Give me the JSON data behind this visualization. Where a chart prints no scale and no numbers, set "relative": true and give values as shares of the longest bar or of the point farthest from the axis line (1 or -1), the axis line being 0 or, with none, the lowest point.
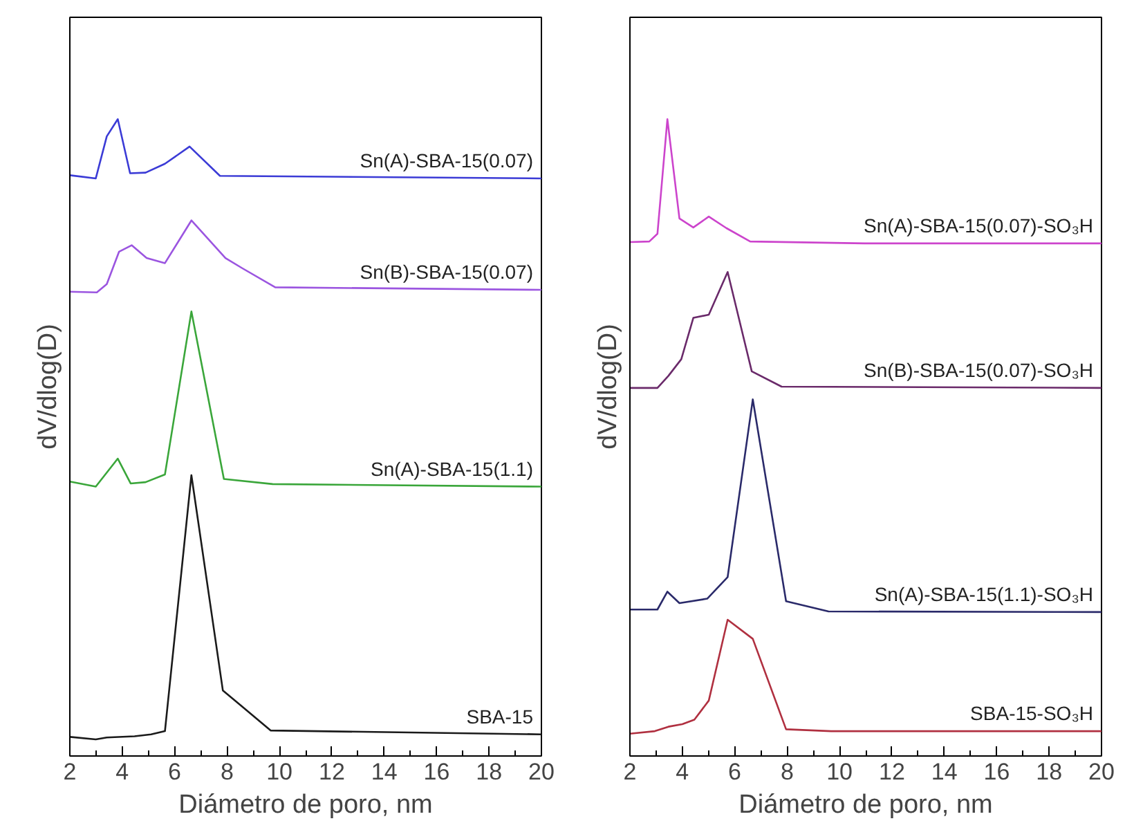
{
  "chart_data": [
    {
      "type": "line",
      "relative": true,
      "xlabel": "Diámetro de poro, nm",
      "ylabel": "dV/dlog(D)",
      "xlim": [
        2,
        20
      ],
      "xticks": [
        2,
        4,
        6,
        8,
        10,
        12,
        14,
        16,
        18,
        20
      ],
      "tick_labels": "x",
      "grid": false,
      "marker": "none",
      "line_style": "solid",
      "series": [
        {
          "name": "Sn(A)-SBA-15(0.07)",
          "color": "#3b3bd6",
          "x": [
            2,
            2.99,
            3.41,
            3.83,
            4.3,
            4.89,
            5.63,
            6.57,
            7.73,
            20
          ],
          "values": [
            0.912,
            0.907,
            0.973,
            1,
            0.915,
            0.916,
            0.93,
            0.957,
            0.911,
            0.907
          ]
        },
        {
          "name": "Sn(B)-SBA-15(0.07)",
          "color": "#9b55e0",
          "x": [
            2,
            3.03,
            3.41,
            3.88,
            4.36,
            4.93,
            5.63,
            6.64,
            7.94,
            8.58,
            9.84,
            20
          ],
          "values": [
            0.729,
            0.728,
            0.741,
            0.792,
            0.802,
            0.782,
            0.774,
            0.841,
            0.782,
            0.766,
            0.736,
            0.732
          ]
        },
        {
          "name": "Sn(A)-SBA-15(1.1)",
          "color": "#3aa63a",
          "x": [
            2,
            2.99,
            3.83,
            4.32,
            4.89,
            5.63,
            6.64,
            7.88,
            9.74,
            20
          ],
          "values": [
            0.431,
            0.423,
            0.467,
            0.428,
            0.43,
            0.442,
            0.698,
            0.435,
            0.427,
            0.423
          ]
        },
        {
          "name": "SBA-15",
          "color": "#1a1a1a",
          "x": [
            2,
            2.99,
            3.41,
            4.47,
            5.1,
            5.63,
            6.64,
            7.84,
            9.67,
            20
          ],
          "values": [
            0.03,
            0.026,
            0.029,
            0.031,
            0.034,
            0.039,
            0.441,
            0.103,
            0.04,
            0.034
          ]
        }
      ]
    },
    {
      "type": "line",
      "relative": true,
      "xlabel": "Diámetro de poro, nm",
      "ylabel": "dV/dlog(D)",
      "xlim": [
        2,
        20
      ],
      "xticks": [
        2,
        4,
        6,
        8,
        10,
        12,
        14,
        16,
        18,
        20
      ],
      "tick_labels": "x",
      "grid": false,
      "marker": "none",
      "line_style": "solid",
      "series": [
        {
          "name": "Sn(A)-SBA-15(0.07)-SO₃H",
          "color": "#cc44cc",
          "x": [
            2,
            2.74,
            3.05,
            3.43,
            3.89,
            4.42,
            5.01,
            5.68,
            6.59,
            10.95,
            20
          ],
          "values": [
            0.807,
            0.808,
            0.82,
            1,
            0.844,
            0.83,
            0.847,
            0.829,
            0.808,
            0.805,
            0.805
          ]
        },
        {
          "name": "Sn(B)-SBA-15(0.07)-SO₃H",
          "color": "#6a2a6a",
          "x": [
            2,
            3.05,
            3.47,
            3.96,
            4.42,
            5.01,
            5.73,
            6.65,
            7.79,
            20
          ],
          "values": [
            0.578,
            0.578,
            0.597,
            0.623,
            0.688,
            0.693,
            0.76,
            0.604,
            0.58,
            0.578
          ]
        },
        {
          "name": "Sn(A)-SBA-15(1.1)-SO₃H",
          "color": "#2a2a6a",
          "x": [
            2,
            3.05,
            3.43,
            3.89,
            4.95,
            5.73,
            6.69,
            7.96,
            9.58,
            20
          ],
          "values": [
            0.23,
            0.23,
            0.258,
            0.24,
            0.247,
            0.281,
            0.56,
            0.243,
            0.227,
            0.226
          ]
        },
        {
          "name": "SBA-15-SO₃H",
          "color": "#b03040",
          "x": [
            2,
            2.95,
            3.47,
            4.0,
            4.46,
            5.01,
            5.73,
            6.69,
            7.96,
            9.68,
            20
          ],
          "values": [
            0.035,
            0.039,
            0.046,
            0.05,
            0.057,
            0.087,
            0.214,
            0.184,
            0.042,
            0.039,
            0.039
          ]
        }
      ]
    }
  ]
}
